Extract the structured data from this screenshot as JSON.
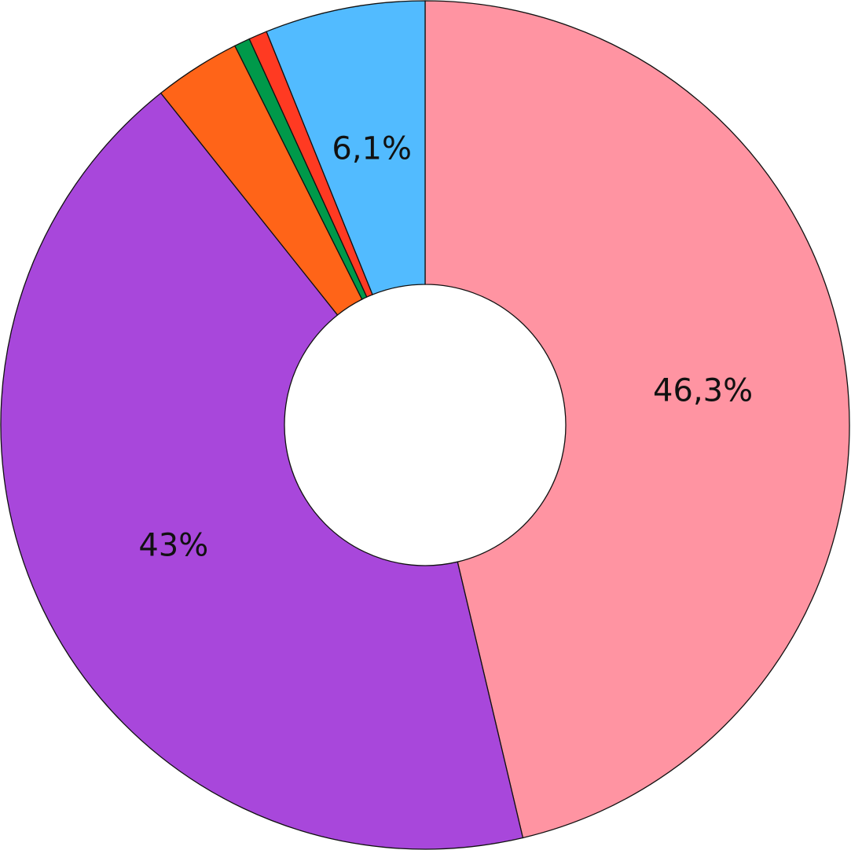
{
  "chart_data": {
    "type": "donut",
    "values": [
      46.3,
      43,
      3.3,
      0.6,
      0.7,
      6.1
    ],
    "value_labels": [
      "46,3%",
      "43%",
      null,
      null,
      null,
      "6,1%"
    ],
    "colors": [
      "#ff94a2",
      "#a847db",
      "#ff6418",
      "#00994a",
      "#ff3a22",
      "#52bbff"
    ]
  }
}
